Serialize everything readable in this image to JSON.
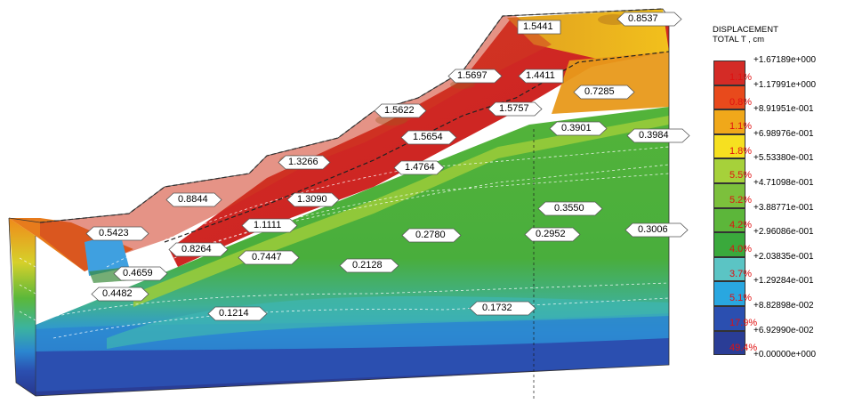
{
  "legend": {
    "title_line1": "DISPLACEMENT",
    "title_line2": "TOTAL T , cm",
    "values": [
      "+1.67189e+000",
      "+1.17991e+000",
      "+8.91951e-001",
      "+6.98976e-001",
      "+5.53380e-001",
      "+4.71098e-001",
      "+3.88771e-001",
      "+2.96086e-001",
      "+2.03835e-001",
      "+1.29284e-001",
      "+8.82898e-002",
      "+6.92990e-002",
      "+0.00000e+000"
    ],
    "bands": [
      {
        "pct": "1.1%",
        "color": "#d42b26"
      },
      {
        "pct": "0.8%",
        "color": "#e84a1c"
      },
      {
        "pct": "1.1%",
        "color": "#f0a81a"
      },
      {
        "pct": "1.8%",
        "color": "#f6e020"
      },
      {
        "pct": "5.5%",
        "color": "#a6d13a"
      },
      {
        "pct": "5.2%",
        "color": "#7cc03c"
      },
      {
        "pct": "4.2%",
        "color": "#5cb63a"
      },
      {
        "pct": "4.0%",
        "color": "#3aa93c"
      },
      {
        "pct": "3.7%",
        "color": "#5bc4c4"
      },
      {
        "pct": "5.1%",
        "color": "#29a7e0"
      },
      {
        "pct": "17.9%",
        "color": "#2b4fb0"
      },
      {
        "pct": "49.4%",
        "color": "#2a3d96"
      }
    ]
  },
  "labels": [
    "0.8537",
    "1.5441",
    "1.5697",
    "1.4411",
    "0.7285",
    "1.5622",
    "1.5757",
    "0.3901",
    "0.3984",
    "1.5654",
    "1.3266",
    "1.4764",
    "0.8844",
    "1.3090",
    "0.3550",
    "1.1111",
    "0.2780",
    "0.5423",
    "0.8264",
    "0.2952",
    "0.3006",
    "0.7447",
    "0.2128",
    "0.4659",
    "0.4482",
    "0.1214",
    "0.1732"
  ]
}
